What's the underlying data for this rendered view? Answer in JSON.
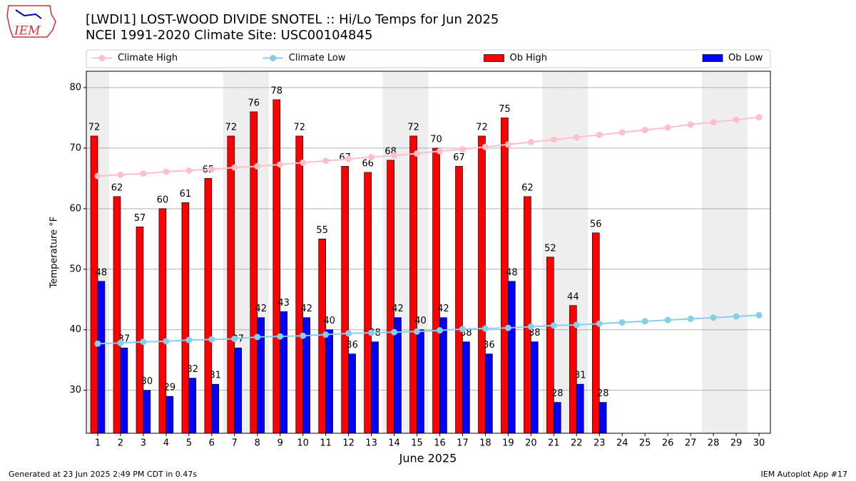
{
  "logo": "IEM",
  "footer_left": "Generated at 23 Jun 2025 2:49 PM CDT in 0.47s",
  "footer_right": "IEM Autoplot App #17",
  "chart_data": {
    "type": "bar",
    "title": "[LWDI1] LOST-WOOD DIVIDE SNOTEL :: Hi/Lo Temps for Jun 2025",
    "subtitle": "NCEI 1991-2020 Climate Site: USC00104845",
    "xlabel": "June 2025",
    "ylabel": "Temperature °F",
    "x": [
      1,
      2,
      3,
      4,
      5,
      6,
      7,
      8,
      9,
      10,
      11,
      12,
      13,
      14,
      15,
      16,
      17,
      18,
      19,
      20,
      21,
      22,
      23,
      24,
      25,
      26,
      27,
      28,
      29,
      30
    ],
    "series": [
      {
        "name": "Climate High",
        "type": "line",
        "color": "#ffc0cb",
        "values": [
          65.4,
          65.6,
          65.8,
          66.1,
          66.3,
          66.5,
          66.8,
          67.0,
          67.3,
          67.6,
          67.9,
          68.2,
          68.5,
          68.8,
          69.1,
          69.5,
          69.8,
          70.2,
          70.6,
          71.0,
          71.4,
          71.8,
          72.2,
          72.6,
          73.0,
          73.4,
          73.9,
          74.3,
          74.7,
          75.1
        ]
      },
      {
        "name": "Climate Low",
        "type": "line",
        "color": "#87ceeb",
        "values": [
          37.7,
          37.8,
          38.0,
          38.1,
          38.3,
          38.4,
          38.5,
          38.8,
          38.9,
          39.0,
          39.2,
          39.4,
          39.5,
          39.6,
          39.7,
          39.9,
          40.1,
          40.2,
          40.3,
          40.5,
          40.7,
          40.8,
          41.0,
          41.2,
          41.4,
          41.6,
          41.8,
          42.0,
          42.2,
          42.4
        ]
      },
      {
        "name": "Ob High",
        "type": "bar",
        "color": "#ff0000",
        "values": [
          72,
          62,
          57,
          60,
          61,
          65,
          72,
          76,
          78,
          72,
          55,
          67,
          66,
          68,
          72,
          70,
          67,
          72,
          75,
          62,
          52,
          44,
          56,
          null,
          null,
          null,
          null,
          null,
          null,
          null
        ]
      },
      {
        "name": "Ob Low",
        "type": "bar",
        "color": "#0000ff",
        "values": [
          48,
          37,
          30,
          29,
          32,
          31,
          37,
          42,
          43,
          42,
          40,
          36,
          38,
          42,
          40,
          42,
          38,
          36,
          48,
          38,
          28,
          31,
          28,
          null,
          null,
          null,
          null,
          null,
          null,
          null
        ]
      }
    ],
    "shaded_days": [
      1,
      7,
      8,
      14,
      15,
      21,
      22,
      28,
      29
    ],
    "xlim": [
      0.5,
      30.5
    ],
    "xticks": [
      1,
      2,
      3,
      4,
      5,
      6,
      7,
      8,
      9,
      10,
      11,
      12,
      13,
      14,
      15,
      16,
      17,
      18,
      19,
      20,
      21,
      22,
      23,
      24,
      25,
      26,
      27,
      28,
      29,
      30
    ],
    "ylim": [
      22.9,
      82.7
    ],
    "yticks": [
      30,
      40,
      50,
      60,
      70,
      80
    ],
    "grid": true,
    "legend": "top"
  }
}
